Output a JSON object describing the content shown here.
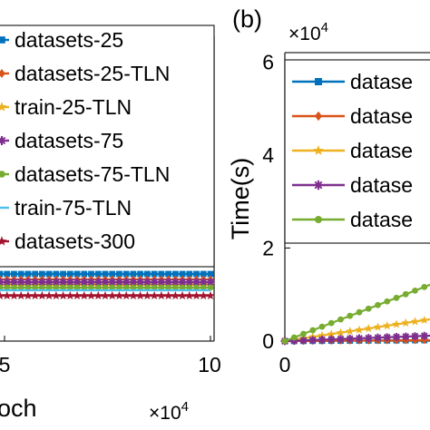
{
  "chart_data": [
    {
      "type": "line",
      "panel_label": "",
      "xlabel": "och",
      "x_tick_labels": [
        "5",
        "10"
      ],
      "x_exponent": "×10",
      "x_exponent_power": "4",
      "legend_position": "top",
      "series": [
        {
          "name": "datasets-25",
          "color": "#0072BD",
          "marker": "square",
          "x": [
            0,
            100000
          ],
          "y": [
            0.9,
            0.9
          ]
        },
        {
          "name": "datasets-25-TLN",
          "color": "#D95319",
          "marker": "diamond",
          "x": [
            0,
            100000
          ],
          "y": [
            0.8,
            0.8
          ]
        },
        {
          "name": "train-25-TLN",
          "color": "#EDB120",
          "marker": "star",
          "x": [
            0,
            100000
          ],
          "y": [
            0.7,
            0.7
          ]
        },
        {
          "name": "datasets-75",
          "color": "#7E2F8E",
          "marker": "asterisk",
          "x": [
            0,
            100000
          ],
          "y": [
            0.75,
            0.75
          ]
        },
        {
          "name": "datasets-75-TLN",
          "color": "#77AC30",
          "marker": "circle",
          "x": [
            0,
            100000
          ],
          "y": [
            0.65,
            0.65
          ]
        },
        {
          "name": "train-75-TLN",
          "color": "#4DBEEE",
          "marker": "none",
          "x": [
            0,
            100000
          ],
          "y": [
            0.6,
            0.6
          ]
        },
        {
          "name": "datasets-300",
          "color": "#A2142F",
          "marker": "star",
          "x": [
            0,
            100000
          ],
          "y": [
            0.5,
            0.5
          ]
        }
      ]
    },
    {
      "type": "line",
      "panel_label": "(b)",
      "ylabel": "Time(s)",
      "y_tick_labels": [
        "0",
        "2",
        "4",
        "6"
      ],
      "y_exponent": "×10",
      "y_exponent_power": "4",
      "x_tick_labels": [
        "0"
      ],
      "ylim": [
        0,
        62000
      ],
      "legend_position": "top",
      "series": [
        {
          "name": "datase",
          "color": "#0072BD",
          "marker": "square",
          "x": [
            0,
            100000
          ],
          "y": [
            0,
            500
          ]
        },
        {
          "name": "datase",
          "color": "#D95319",
          "marker": "diamond",
          "x": [
            0,
            100000
          ],
          "y": [
            0,
            500
          ]
        },
        {
          "name": "datase",
          "color": "#EDB120",
          "marker": "star",
          "x": [
            0,
            100000
          ],
          "y": [
            0,
            12000
          ]
        },
        {
          "name": "datase",
          "color": "#7E2F8E",
          "marker": "asterisk",
          "x": [
            0,
            100000
          ],
          "y": [
            0,
            3000
          ]
        },
        {
          "name": "datase",
          "color": "#77AC30",
          "marker": "circle",
          "x": [
            0,
            100000
          ],
          "y": [
            0,
            31000
          ]
        }
      ]
    }
  ]
}
